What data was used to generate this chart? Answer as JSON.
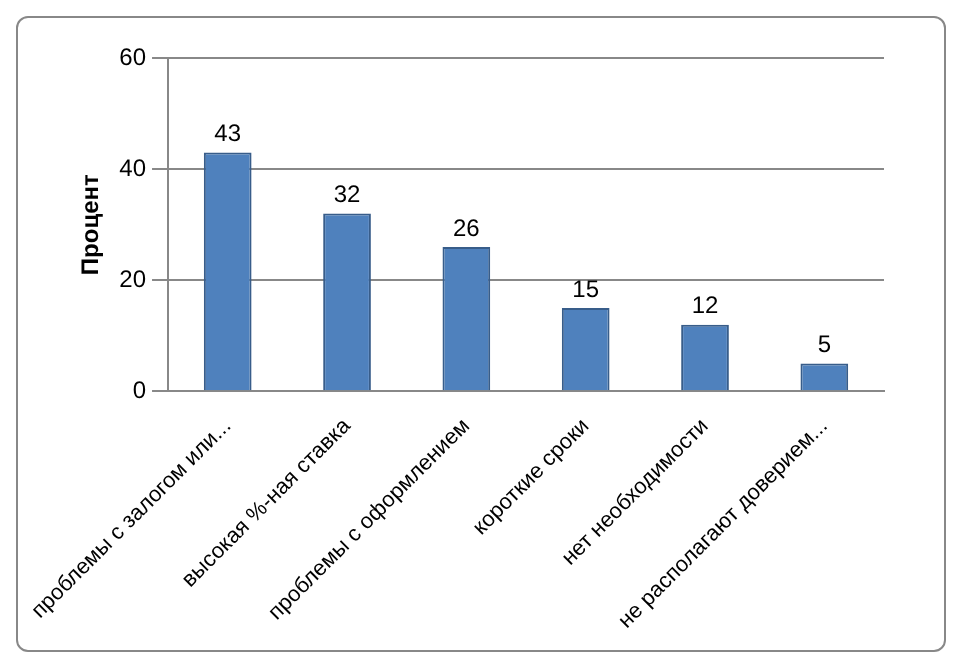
{
  "chart_data": {
    "type": "bar",
    "ylabel": "Процент",
    "categories": [
      "проблемы с залогом или...",
      "высокая %-ная ставка",
      "проблемы с оформлением",
      "короткие сроки",
      "нет необходимости",
      "не располагают доверием..."
    ],
    "values": [
      43,
      32,
      26,
      15,
      12,
      5
    ],
    "color": "#4f81bd",
    "ylim": [
      0,
      60
    ],
    "yticks": [
      0,
      20,
      40,
      60
    ],
    "grid": "y",
    "data_labels": true
  }
}
